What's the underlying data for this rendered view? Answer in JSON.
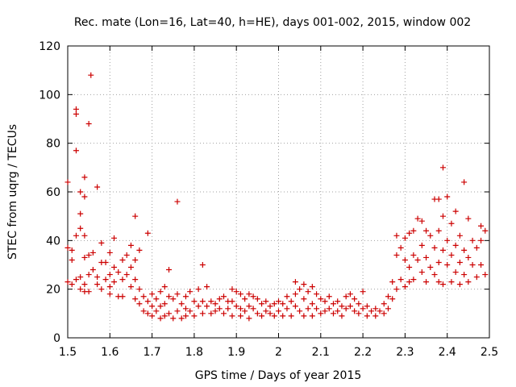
{
  "chart_data": {
    "type": "scatter",
    "title": "Rec. mate (Lon=16, Lat=40, h=HE), days 001-002, 2015, window 002",
    "xlabel": "GPS time / Days of year 2015",
    "ylabel": "STEC from uqrg / TECUs",
    "xlim": [
      1.5,
      2.5
    ],
    "ylim": [
      0,
      120
    ],
    "xticks": [
      "1.5",
      "1.6",
      "1.7",
      "1.8",
      "1.9",
      "2",
      "2.1",
      "2.2",
      "2.3",
      "2.4",
      "2.5"
    ],
    "yticks": [
      "0",
      "20",
      "40",
      "60",
      "80",
      "100",
      "120"
    ],
    "grid": true,
    "marker": "+",
    "color": "#cc0000",
    "series": [
      {
        "name": "",
        "points": [
          [
            1.5,
            64
          ],
          [
            1.5,
            37
          ],
          [
            1.5,
            23
          ],
          [
            1.51,
            22
          ],
          [
            1.51,
            32
          ],
          [
            1.51,
            36
          ],
          [
            1.52,
            42
          ],
          [
            1.52,
            77
          ],
          [
            1.52,
            92
          ],
          [
            1.52,
            94
          ],
          [
            1.52,
            24
          ],
          [
            1.53,
            45
          ],
          [
            1.53,
            51
          ],
          [
            1.53,
            60
          ],
          [
            1.53,
            25
          ],
          [
            1.53,
            20
          ],
          [
            1.54,
            58
          ],
          [
            1.54,
            66
          ],
          [
            1.54,
            42
          ],
          [
            1.54,
            33
          ],
          [
            1.54,
            22
          ],
          [
            1.54,
            19
          ],
          [
            1.55,
            88
          ],
          [
            1.555,
            108
          ],
          [
            1.55,
            34
          ],
          [
            1.55,
            26
          ],
          [
            1.55,
            19
          ],
          [
            1.56,
            35
          ],
          [
            1.56,
            28
          ],
          [
            1.57,
            62
          ],
          [
            1.57,
            25
          ],
          [
            1.57,
            22
          ],
          [
            1.58,
            39
          ],
          [
            1.58,
            31
          ],
          [
            1.58,
            20
          ],
          [
            1.59,
            31
          ],
          [
            1.59,
            24
          ],
          [
            1.6,
            35
          ],
          [
            1.6,
            26
          ],
          [
            1.6,
            21
          ],
          [
            1.6,
            18
          ],
          [
            1.61,
            41
          ],
          [
            1.61,
            29
          ],
          [
            1.61,
            23
          ],
          [
            1.62,
            27
          ],
          [
            1.62,
            17
          ],
          [
            1.63,
            32
          ],
          [
            1.63,
            24
          ],
          [
            1.63,
            17
          ],
          [
            1.64,
            34
          ],
          [
            1.64,
            26
          ],
          [
            1.65,
            38
          ],
          [
            1.65,
            29
          ],
          [
            1.65,
            21
          ],
          [
            1.66,
            32
          ],
          [
            1.66,
            50
          ],
          [
            1.66,
            24
          ],
          [
            1.66,
            16
          ],
          [
            1.67,
            36
          ],
          [
            1.67,
            20
          ],
          [
            1.67,
            14
          ],
          [
            1.68,
            17
          ],
          [
            1.68,
            11
          ],
          [
            1.69,
            43
          ],
          [
            1.69,
            15
          ],
          [
            1.69,
            10
          ],
          [
            1.7,
            18
          ],
          [
            1.7,
            13
          ],
          [
            1.7,
            9
          ],
          [
            1.71,
            16
          ],
          [
            1.71,
            11
          ],
          [
            1.72,
            19
          ],
          [
            1.72,
            13
          ],
          [
            1.72,
            8
          ],
          [
            1.73,
            21
          ],
          [
            1.73,
            14
          ],
          [
            1.73,
            9
          ],
          [
            1.74,
            28
          ],
          [
            1.74,
            17
          ],
          [
            1.74,
            10
          ],
          [
            1.75,
            16
          ],
          [
            1.75,
            8
          ],
          [
            1.76,
            56
          ],
          [
            1.76,
            18
          ],
          [
            1.76,
            11
          ],
          [
            1.77,
            14
          ],
          [
            1.77,
            8
          ],
          [
            1.78,
            17
          ],
          [
            1.78,
            12
          ],
          [
            1.78,
            9
          ],
          [
            1.79,
            19
          ],
          [
            1.79,
            11
          ],
          [
            1.8,
            15
          ],
          [
            1.8,
            9
          ],
          [
            1.81,
            20
          ],
          [
            1.81,
            13
          ],
          [
            1.82,
            30
          ],
          [
            1.82,
            15
          ],
          [
            1.82,
            10
          ],
          [
            1.83,
            21
          ],
          [
            1.83,
            13
          ],
          [
            1.84,
            15
          ],
          [
            1.84,
            10
          ],
          [
            1.85,
            14
          ],
          [
            1.85,
            11
          ],
          [
            1.86,
            16
          ],
          [
            1.86,
            12
          ],
          [
            1.87,
            17
          ],
          [
            1.87,
            10
          ],
          [
            1.88,
            15
          ],
          [
            1.88,
            12
          ],
          [
            1.89,
            20
          ],
          [
            1.89,
            15
          ],
          [
            1.89,
            9
          ],
          [
            1.9,
            19
          ],
          [
            1.9,
            13
          ],
          [
            1.91,
            18
          ],
          [
            1.91,
            12
          ],
          [
            1.91,
            9
          ],
          [
            1.92,
            16
          ],
          [
            1.92,
            11
          ],
          [
            1.93,
            18
          ],
          [
            1.93,
            13
          ],
          [
            1.93,
            8
          ],
          [
            1.94,
            17
          ],
          [
            1.94,
            12
          ],
          [
            1.95,
            16
          ],
          [
            1.95,
            10
          ],
          [
            1.96,
            14
          ],
          [
            1.96,
            9
          ],
          [
            1.97,
            15
          ],
          [
            1.97,
            11
          ],
          [
            1.98,
            13
          ],
          [
            1.98,
            10
          ],
          [
            1.99,
            14
          ],
          [
            1.99,
            9
          ],
          [
            2.0,
            15
          ],
          [
            2.0,
            11
          ],
          [
            2.01,
            14
          ],
          [
            2.01,
            9
          ],
          [
            2.02,
            17
          ],
          [
            2.02,
            12
          ],
          [
            2.03,
            15
          ],
          [
            2.03,
            9
          ],
          [
            2.04,
            23
          ],
          [
            2.04,
            18
          ],
          [
            2.04,
            13
          ],
          [
            2.05,
            20
          ],
          [
            2.05,
            11
          ],
          [
            2.06,
            22
          ],
          [
            2.06,
            16
          ],
          [
            2.06,
            9
          ],
          [
            2.07,
            19
          ],
          [
            2.07,
            12
          ],
          [
            2.08,
            21
          ],
          [
            2.08,
            14
          ],
          [
            2.08,
            9
          ],
          [
            2.09,
            18
          ],
          [
            2.09,
            12
          ],
          [
            2.1,
            16
          ],
          [
            2.1,
            10
          ],
          [
            2.11,
            15
          ],
          [
            2.11,
            11
          ],
          [
            2.12,
            17
          ],
          [
            2.12,
            12
          ],
          [
            2.13,
            14
          ],
          [
            2.13,
            10
          ],
          [
            2.14,
            15
          ],
          [
            2.14,
            11
          ],
          [
            2.15,
            13
          ],
          [
            2.15,
            9
          ],
          [
            2.16,
            17
          ],
          [
            2.16,
            12
          ],
          [
            2.17,
            18
          ],
          [
            2.17,
            13
          ],
          [
            2.18,
            16
          ],
          [
            2.18,
            11
          ],
          [
            2.19,
            14
          ],
          [
            2.19,
            10
          ],
          [
            2.2,
            19
          ],
          [
            2.2,
            12
          ],
          [
            2.21,
            13
          ],
          [
            2.21,
            9
          ],
          [
            2.22,
            11
          ],
          [
            2.23,
            12
          ],
          [
            2.23,
            9
          ],
          [
            2.24,
            11
          ],
          [
            2.25,
            14
          ],
          [
            2.25,
            10
          ],
          [
            2.26,
            17
          ],
          [
            2.26,
            12
          ],
          [
            2.27,
            23
          ],
          [
            2.27,
            16
          ],
          [
            2.28,
            42
          ],
          [
            2.28,
            34
          ],
          [
            2.28,
            20
          ],
          [
            2.29,
            37
          ],
          [
            2.29,
            24
          ],
          [
            2.3,
            41
          ],
          [
            2.3,
            32
          ],
          [
            2.3,
            21
          ],
          [
            2.31,
            43
          ],
          [
            2.31,
            29
          ],
          [
            2.31,
            23
          ],
          [
            2.32,
            44
          ],
          [
            2.32,
            34
          ],
          [
            2.32,
            24
          ],
          [
            2.33,
            49
          ],
          [
            2.33,
            32
          ],
          [
            2.34,
            48
          ],
          [
            2.34,
            38
          ],
          [
            2.34,
            27
          ],
          [
            2.35,
            44
          ],
          [
            2.35,
            33
          ],
          [
            2.35,
            23
          ],
          [
            2.36,
            42
          ],
          [
            2.36,
            29
          ],
          [
            2.37,
            57
          ],
          [
            2.37,
            37
          ],
          [
            2.37,
            26
          ],
          [
            2.38,
            57
          ],
          [
            2.38,
            44
          ],
          [
            2.38,
            31
          ],
          [
            2.38,
            23
          ],
          [
            2.39,
            70
          ],
          [
            2.39,
            50
          ],
          [
            2.39,
            36
          ],
          [
            2.39,
            22
          ],
          [
            2.4,
            58
          ],
          [
            2.4,
            40
          ],
          [
            2.4,
            30
          ],
          [
            2.41,
            47
          ],
          [
            2.41,
            34
          ],
          [
            2.41,
            23
          ],
          [
            2.42,
            52
          ],
          [
            2.42,
            38
          ],
          [
            2.42,
            27
          ],
          [
            2.43,
            42
          ],
          [
            2.43,
            31
          ],
          [
            2.43,
            22
          ],
          [
            2.44,
            64
          ],
          [
            2.44,
            36
          ],
          [
            2.44,
            26
          ],
          [
            2.45,
            49
          ],
          [
            2.45,
            33
          ],
          [
            2.45,
            23
          ],
          [
            2.46,
            40
          ],
          [
            2.46,
            30
          ],
          [
            2.47,
            37
          ],
          [
            2.47,
            25
          ],
          [
            2.48,
            46
          ],
          [
            2.48,
            40
          ],
          [
            2.48,
            30
          ],
          [
            2.49,
            44
          ],
          [
            2.49,
            26
          ]
        ]
      }
    ]
  }
}
